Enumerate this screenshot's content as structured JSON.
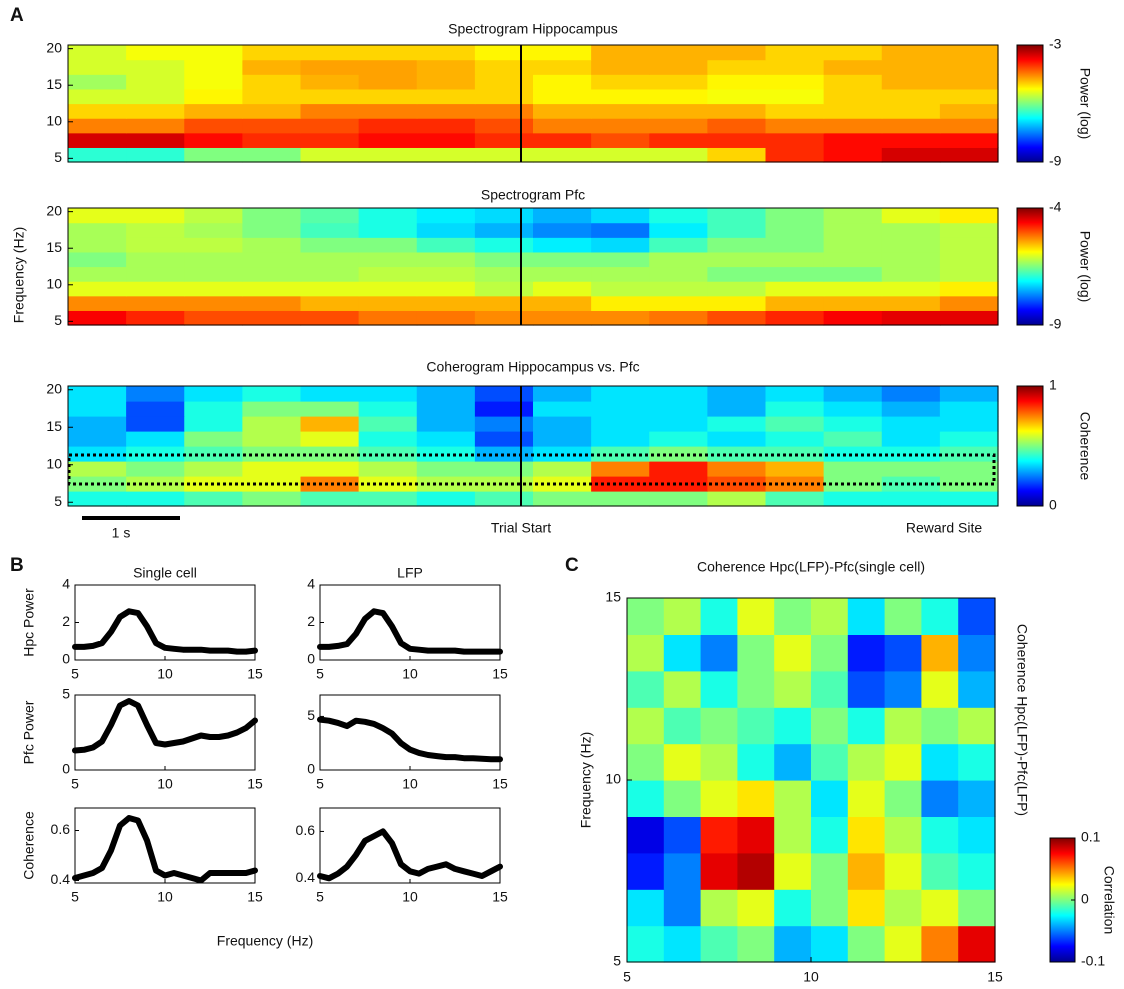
{
  "panel_labels": [
    "A",
    "B",
    "C"
  ],
  "panel_a": {
    "ylabel": "Frequency (Hz)",
    "trial_start": "Trial Start",
    "reward_site": "Reward Site",
    "scale_bar": "1 s"
  },
  "panel_b": {
    "xlabel": "Frequency (Hz)"
  },
  "chart_data": [
    {
      "type": "heatmap",
      "title": "Spectrogram Hippocampus",
      "colormap": "jet",
      "ylim": [
        4.5,
        20.5
      ],
      "yticks": [
        5,
        10,
        15,
        20
      ],
      "clim": [
        -9,
        -3
      ],
      "cticks": [
        -9,
        -3
      ],
      "colorbar_label": "Power (log)",
      "z": [
        [
          -6.5,
          -6.5,
          -6,
          -6,
          -5.5,
          -5.5,
          -5.5,
          -5.5,
          -5.5,
          -5.5,
          -5.5,
          -5,
          -4,
          -3.8,
          -3.5,
          -3.5
        ],
        [
          -3.5,
          -3.5,
          -3.8,
          -4,
          -4,
          -3.8,
          -3.8,
          -4,
          -4,
          -4.2,
          -4,
          -4,
          -4,
          -3.8,
          -3.8,
          -3.8
        ],
        [
          -4.5,
          -4.5,
          -4.2,
          -4.2,
          -4.2,
          -4,
          -4,
          -4.2,
          -4.5,
          -4.5,
          -4.5,
          -4.3,
          -4.5,
          -4.5,
          -4.5,
          -4.5
        ],
        [
          -5,
          -5,
          -4.8,
          -4.8,
          -4.5,
          -4.5,
          -4.5,
          -4.5,
          -4.8,
          -4.8,
          -4.8,
          -4.8,
          -5,
          -5,
          -5,
          -4.8
        ],
        [
          -5.5,
          -5.5,
          -5.2,
          -5,
          -5,
          -5,
          -5,
          -5,
          -5.2,
          -5.2,
          -5.2,
          -5.3,
          -5.3,
          -5,
          -5,
          -5
        ],
        [
          -5.8,
          -5.5,
          -5.3,
          -5,
          -4.8,
          -4.7,
          -4.8,
          -5,
          -5.2,
          -5,
          -5,
          -5.2,
          -5.2,
          -5,
          -4.8,
          -4.8
        ],
        [
          -5.5,
          -5.5,
          -5.3,
          -4.8,
          -4.7,
          -4.7,
          -4.8,
          -5,
          -5,
          -4.8,
          -4.8,
          -5,
          -5,
          -4.8,
          -4.8,
          -4.8
        ],
        [
          -5.5,
          -5.3,
          -5.3,
          -5,
          -5,
          -5,
          -5,
          -5.2,
          -5.2,
          -4.8,
          -4.8,
          -4.8,
          -5,
          -5,
          -4.8,
          -4.8
        ]
      ]
    },
    {
      "type": "heatmap",
      "title": "Spectrogram Pfc",
      "colormap": "jet",
      "ylim": [
        4.5,
        20.5
      ],
      "yticks": [
        5,
        10,
        15,
        20
      ],
      "clim": [
        -9,
        -4
      ],
      "cticks": [
        -9,
        -4
      ],
      "colorbar_label": "Power (log)",
      "z": [
        [
          -4.6,
          -4.8,
          -5,
          -5,
          -5,
          -5.2,
          -5.2,
          -5.3,
          -5.3,
          -5.3,
          -5.2,
          -5,
          -4.8,
          -4.6,
          -4.5,
          -4.5
        ],
        [
          -5.3,
          -5.3,
          -5.3,
          -5.3,
          -5.5,
          -5.5,
          -5.5,
          -5.5,
          -5.5,
          -5.8,
          -5.8,
          -5.8,
          -5.5,
          -5.5,
          -5.5,
          -5.3
        ],
        [
          -6,
          -6,
          -6,
          -6,
          -6,
          -6,
          -6,
          -6.2,
          -6,
          -6.2,
          -6.2,
          -6.2,
          -6,
          -6,
          -6,
          -5.8
        ],
        [
          -6.3,
          -6.3,
          -6.3,
          -6.3,
          -6.3,
          -6.2,
          -6.2,
          -6.3,
          -6.3,
          -6.3,
          -6.3,
          -6.5,
          -6.5,
          -6.5,
          -6.3,
          -6.2
        ],
        [
          -6.5,
          -6.3,
          -6.3,
          -6.3,
          -6.3,
          -6.3,
          -6.3,
          -6.5,
          -6.5,
          -6.5,
          -6.3,
          -6.3,
          -6.3,
          -6.3,
          -6.3,
          -6.2
        ],
        [
          -6.3,
          -6.2,
          -6.2,
          -6.3,
          -6.5,
          -6.5,
          -6.8,
          -7,
          -7.2,
          -7.3,
          -6.8,
          -6.5,
          -6.5,
          -6.3,
          -6.3,
          -6.2
        ],
        [
          -6.3,
          -6.2,
          -6.3,
          -6.5,
          -6.8,
          -7,
          -7.3,
          -7.5,
          -7.7,
          -7.8,
          -7.2,
          -6.8,
          -6.5,
          -6.3,
          -6.3,
          -6.2
        ],
        [
          -6,
          -6,
          -6.2,
          -6.5,
          -6.7,
          -7,
          -7.2,
          -7.3,
          -7.5,
          -7.3,
          -7,
          -6.8,
          -6.5,
          -6.3,
          -6,
          -5.8
        ]
      ]
    },
    {
      "type": "heatmap",
      "title": "Coherogram Hippocampus vs. Pfc",
      "colormap": "jet",
      "ylim": [
        4.5,
        20.5
      ],
      "yticks": [
        5,
        10,
        15,
        20
      ],
      "clim": [
        0,
        1
      ],
      "cticks": [
        0,
        1
      ],
      "colorbar_label": "Coherence",
      "z": [
        [
          0.4,
          0.4,
          0.45,
          0.5,
          0.45,
          0.45,
          0.4,
          0.45,
          0.5,
          0.5,
          0.5,
          0.55,
          0.45,
          0.4,
          0.4,
          0.4
        ],
        [
          0.5,
          0.55,
          0.6,
          0.6,
          0.75,
          0.6,
          0.55,
          0.55,
          0.6,
          0.85,
          0.85,
          0.8,
          0.75,
          0.5,
          0.45,
          0.5
        ],
        [
          0.55,
          0.5,
          0.55,
          0.6,
          0.6,
          0.55,
          0.5,
          0.5,
          0.55,
          0.75,
          0.85,
          0.75,
          0.7,
          0.5,
          0.5,
          0.5
        ],
        [
          0.35,
          0.4,
          0.45,
          0.5,
          0.5,
          0.45,
          0.4,
          0.3,
          0.35,
          0.45,
          0.5,
          0.45,
          0.45,
          0.4,
          0.4,
          0.45
        ],
        [
          0.3,
          0.35,
          0.5,
          0.55,
          0.6,
          0.4,
          0.35,
          0.2,
          0.3,
          0.35,
          0.4,
          0.35,
          0.4,
          0.45,
          0.35,
          0.4
        ],
        [
          0.3,
          0.2,
          0.4,
          0.55,
          0.7,
          0.45,
          0.3,
          0.25,
          0.3,
          0.35,
          0.35,
          0.4,
          0.45,
          0.4,
          0.35,
          0.35
        ],
        [
          0.35,
          0.2,
          0.4,
          0.5,
          0.5,
          0.4,
          0.3,
          0.15,
          0.35,
          0.35,
          0.35,
          0.3,
          0.4,
          0.35,
          0.3,
          0.35
        ],
        [
          0.35,
          0.25,
          0.35,
          0.4,
          0.35,
          0.35,
          0.3,
          0.2,
          0.3,
          0.35,
          0.35,
          0.3,
          0.35,
          0.3,
          0.25,
          0.3
        ]
      ]
    },
    {
      "type": "line",
      "title": "Single cell",
      "ylabel": "Hpc Power",
      "color": "#000000",
      "xlim": [
        5,
        15
      ],
      "xticks": [
        5,
        10,
        15
      ],
      "ylim": [
        0,
        4
      ],
      "yticks": [
        0,
        2,
        4
      ],
      "x": [
        5,
        5.5,
        6,
        6.5,
        7,
        7.5,
        8,
        8.5,
        9,
        9.5,
        10,
        10.5,
        11,
        11.5,
        12,
        12.5,
        13,
        13.5,
        14,
        14.5,
        15
      ],
      "values": [
        0.7,
        0.7,
        0.75,
        0.9,
        1.5,
        2.3,
        2.6,
        2.5,
        1.8,
        0.9,
        0.65,
        0.6,
        0.55,
        0.55,
        0.55,
        0.5,
        0.5,
        0.5,
        0.45,
        0.45,
        0.5
      ]
    },
    {
      "type": "line",
      "title": "LFP",
      "color": "#000000",
      "xlim": [
        5,
        15
      ],
      "xticks": [
        5,
        10,
        15
      ],
      "ylim": [
        0,
        4
      ],
      "yticks": [
        0,
        2,
        4
      ],
      "x": [
        5,
        5.5,
        6,
        6.5,
        7,
        7.5,
        8,
        8.5,
        9,
        9.5,
        10,
        10.5,
        11,
        11.5,
        12,
        12.5,
        13,
        13.5,
        14,
        14.5,
        15
      ],
      "values": [
        0.7,
        0.7,
        0.75,
        0.85,
        1.4,
        2.2,
        2.6,
        2.5,
        1.8,
        0.9,
        0.6,
        0.55,
        0.5,
        0.5,
        0.5,
        0.5,
        0.45,
        0.45,
        0.45,
        0.45,
        0.45
      ]
    },
    {
      "type": "line",
      "ylabel": "Pfc Power",
      "color": "#000000",
      "xlim": [
        5,
        15
      ],
      "xticks": [
        5,
        10,
        15
      ],
      "ylim": [
        0,
        5
      ],
      "yticks": [
        0,
        5
      ],
      "x": [
        5,
        5.5,
        6,
        6.5,
        7,
        7.5,
        8,
        8.5,
        9,
        9.5,
        10,
        10.5,
        11,
        11.5,
        12,
        12.5,
        13,
        13.5,
        14,
        14.5,
        15
      ],
      "values": [
        1.3,
        1.35,
        1.5,
        1.9,
        3.0,
        4.3,
        4.6,
        4.3,
        3.0,
        1.8,
        1.7,
        1.8,
        1.9,
        2.1,
        2.3,
        2.2,
        2.2,
        2.3,
        2.5,
        2.8,
        3.3
      ]
    },
    {
      "type": "line",
      "color": "#000000",
      "xlim": [
        5,
        15
      ],
      "xticks": [
        5,
        10,
        15
      ],
      "ylim": [
        0,
        7
      ],
      "yticks": [
        0,
        5
      ],
      "x": [
        5,
        5.5,
        6,
        6.5,
        7,
        7.5,
        8,
        8.5,
        9,
        9.5,
        10,
        10.5,
        11,
        11.5,
        12,
        12.5,
        13,
        13.5,
        14,
        14.5,
        15
      ],
      "values": [
        4.7,
        4.6,
        4.4,
        4.1,
        4.6,
        4.5,
        4.3,
        3.9,
        3.4,
        2.5,
        1.9,
        1.6,
        1.4,
        1.3,
        1.2,
        1.2,
        1.1,
        1.1,
        1.05,
        1.0,
        1.0
      ]
    },
    {
      "type": "line",
      "ylabel": "Coherence",
      "color": "#000000",
      "xlim": [
        5,
        15
      ],
      "xticks": [
        5,
        10,
        15
      ],
      "ylim": [
        0.39,
        0.69
      ],
      "yticks": [
        0.4,
        0.6
      ],
      "x": [
        5,
        5.5,
        6,
        6.5,
        7,
        7.5,
        8,
        8.5,
        9,
        9.5,
        10,
        10.5,
        11,
        11.5,
        12,
        12.5,
        13,
        13.5,
        14,
        14.5,
        15
      ],
      "values": [
        0.41,
        0.42,
        0.43,
        0.45,
        0.52,
        0.62,
        0.65,
        0.64,
        0.56,
        0.44,
        0.42,
        0.43,
        0.42,
        0.41,
        0.4,
        0.43,
        0.43,
        0.43,
        0.43,
        0.43,
        0.44
      ]
    },
    {
      "type": "line",
      "color": "#000000",
      "xlim": [
        5,
        15
      ],
      "xticks": [
        5,
        10,
        15
      ],
      "ylim": [
        0.38,
        0.7
      ],
      "yticks": [
        0.4,
        0.6
      ],
      "x": [
        5,
        5.5,
        6,
        6.5,
        7,
        7.5,
        8,
        8.5,
        9,
        9.5,
        10,
        10.5,
        11,
        11.5,
        12,
        12.5,
        13,
        13.5,
        14,
        14.5,
        15
      ],
      "values": [
        0.41,
        0.4,
        0.42,
        0.45,
        0.5,
        0.56,
        0.58,
        0.6,
        0.55,
        0.46,
        0.43,
        0.42,
        0.44,
        0.45,
        0.46,
        0.44,
        0.43,
        0.42,
        0.41,
        0.43,
        0.45
      ]
    },
    {
      "type": "heatmap",
      "title": "Coherence Hpc(LFP)-Pfc(single cell)",
      "side_label": "Coherence Hpc(LFP)-Pfc(LFP)",
      "colormap": "jet",
      "xlabel": "Frequency (Hz)",
      "ylabel": "Frequency (Hz)",
      "xlim": [
        5,
        15
      ],
      "xticks": [
        5,
        10,
        15
      ],
      "ylim": [
        5,
        15
      ],
      "yticks": [
        5,
        10,
        15
      ],
      "clim": [
        -0.1,
        0.1
      ],
      "cticks": [
        -0.1,
        0,
        0.1
      ],
      "colorbar_label": "Correlation",
      "z": [
        [
          -0.02,
          -0.03,
          -0.01,
          0,
          -0.04,
          -0.03,
          0,
          0.02,
          0.05,
          0.08
        ],
        [
          -0.03,
          -0.05,
          0.01,
          0.02,
          -0.02,
          0,
          0.03,
          0.01,
          0.02,
          0
        ],
        [
          -0.07,
          -0.05,
          0.08,
          0.09,
          0.02,
          0,
          0.04,
          0.02,
          -0.01,
          -0.02
        ],
        [
          -0.08,
          -0.06,
          0.07,
          0.08,
          0.01,
          -0.02,
          0.03,
          0.01,
          -0.02,
          -0.03
        ],
        [
          -0.02,
          0,
          0.02,
          0.03,
          0.01,
          -0.03,
          0.02,
          0,
          -0.05,
          -0.04
        ],
        [
          0,
          0.02,
          0.01,
          -0.02,
          -0.04,
          -0.01,
          0.01,
          0.02,
          -0.03,
          -0.02
        ],
        [
          0.01,
          -0.01,
          0,
          -0.01,
          -0.02,
          0,
          -0.02,
          0.01,
          0,
          0.01
        ],
        [
          -0.01,
          0.01,
          -0.02,
          0,
          0.01,
          -0.01,
          -0.06,
          -0.05,
          0.02,
          -0.04
        ],
        [
          0.01,
          -0.03,
          -0.05,
          0,
          0.02,
          0,
          -0.07,
          -0.06,
          0.04,
          -0.05
        ],
        [
          0,
          0.01,
          -0.02,
          0.02,
          0,
          0.01,
          -0.03,
          0,
          -0.02,
          -0.06
        ]
      ]
    }
  ]
}
